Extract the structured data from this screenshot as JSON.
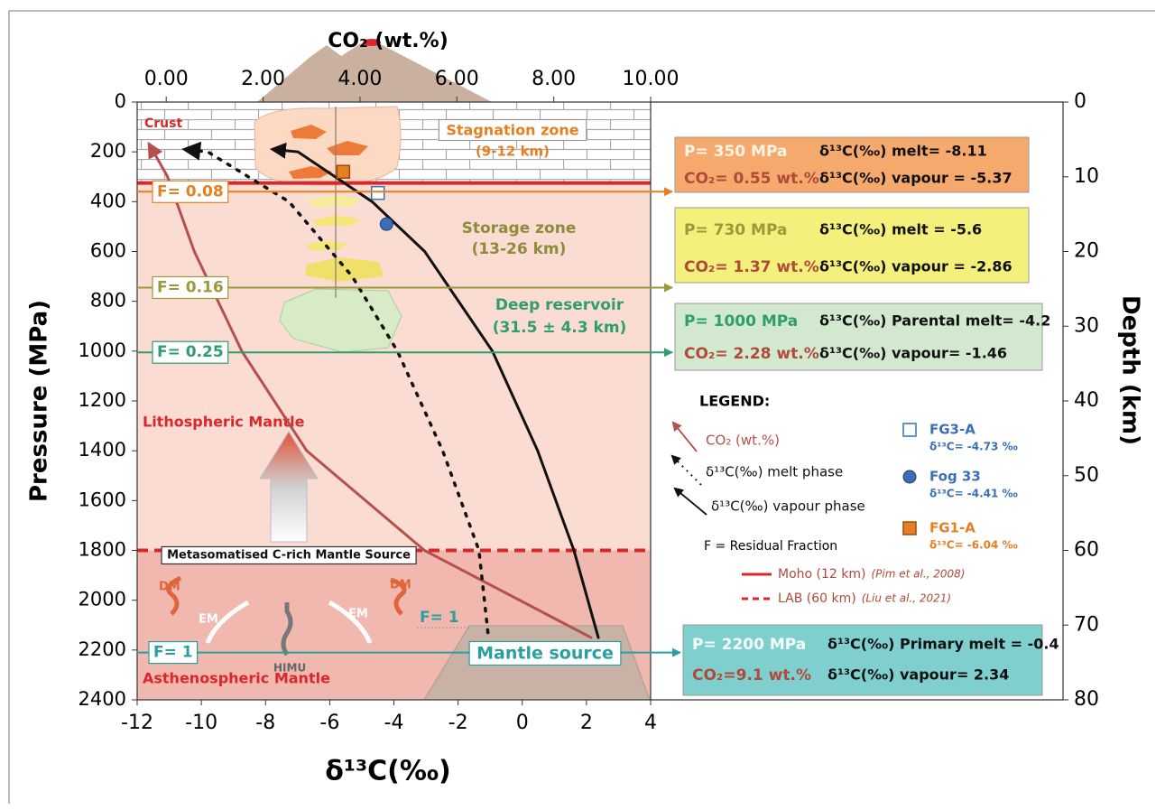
{
  "chart_data": {
    "type": "line",
    "xlabel": "δ¹³C(‰)",
    "x2label": "CO₂ (wt.%)",
    "ylabel": "Pressure (MPa)",
    "y2label": "Depth (km)",
    "xlim": [
      -12,
      4
    ],
    "xticks": [
      -12,
      -10,
      -8,
      -6,
      -4,
      -2,
      0,
      2,
      4
    ],
    "x2lim": [
      -0.6,
      10
    ],
    "x2ticks": [
      {
        "value": 0,
        "label": "0.00"
      },
      {
        "value": 2,
        "label": "2.00"
      },
      {
        "value": 4,
        "label": "4.00"
      },
      {
        "value": 6,
        "label": "6.00"
      },
      {
        "value": 8,
        "label": "8.00"
      },
      {
        "value": 10,
        "label": "10.00"
      }
    ],
    "ylim": [
      0,
      2400
    ],
    "y_inverted": true,
    "yticks": [
      0,
      200,
      400,
      600,
      800,
      1000,
      1200,
      1400,
      1600,
      1800,
      2000,
      2200,
      2400
    ],
    "y2lim": [
      0,
      80
    ],
    "y2ticks": [
      0,
      10,
      20,
      30,
      40,
      50,
      60,
      70,
      80
    ],
    "series": [
      {
        "name": "CO₂ (wt.%)",
        "color": "#b5504f",
        "axis": "x2",
        "style": "solid",
        "x": [
          8.77,
          5.33,
          2.9,
          1.56,
          0.58,
          0.02,
          -0.35
        ],
        "values": [
          2150,
          1800,
          1400,
          1000,
          600,
          297,
          170
        ]
      },
      {
        "name": "δ¹³C(‰) melt phase",
        "color": "#111111",
        "style": "dotted",
        "x": [
          -1.07,
          -1.35,
          -2.48,
          -3.89,
          -5.3,
          -7.27,
          -9.8,
          -10.5
        ],
        "values": [
          2130,
          1800,
          1400,
          1000,
          700,
          400,
          200,
          190
        ]
      },
      {
        "name": "δ¹³C(‰) vapour phase",
        "color": "#111111",
        "style": "solid",
        "x": [
          2.37,
          1.61,
          0.48,
          -0.93,
          -3.04,
          -4.68,
          -6.99,
          -7.77
        ],
        "values": [
          2150,
          1800,
          1400,
          1000,
          600,
          400,
          200,
          190
        ]
      }
    ],
    "samples": [
      {
        "name": "FG3-A",
        "label": "δ¹³C= -4.73 ‰",
        "marker": "open-square",
        "color": "#3a6fb5",
        "x": -4.5,
        "y": 365
      },
      {
        "name": "Fog 33",
        "label": "δ¹³C= -4.41 ‰",
        "marker": "circle",
        "color": "#3a6fb5",
        "x": -4.23,
        "y": 490
      },
      {
        "name": "FG1-A",
        "label": "δ¹³C= -6.04 ‰",
        "marker": "square",
        "color": "#e67e22",
        "x": -5.58,
        "y": 280
      }
    ],
    "reference_lines": [
      {
        "label": "Moho (12 km)",
        "citation": "(Pim et al., 2008)",
        "y": 325,
        "style": "solid",
        "color": "#d9282c"
      },
      {
        "label": "LAB (60 km)",
        "citation": "(Liu et al., 2021)",
        "y": 1800,
        "style": "dashed",
        "color": "#d9282c"
      }
    ],
    "fractions": [
      {
        "label": "F= 0.08",
        "pressure": 360,
        "color": "#e67e22",
        "box": {
          "fill": "#f6a96c",
          "lines": [
            {
              "text": "P= 350 MPa",
              "color": "#fff4e6"
            },
            {
              "text": "δ¹³C(‰) melt= -8.11",
              "color": "#111111"
            },
            {
              "text": "CO₂= 0.55 wt.%",
              "color": "#b04a3a"
            },
            {
              "text": "δ¹³C(‰) vapour = -5.37",
              "color": "#111111"
            }
          ]
        }
      },
      {
        "label": "F= 0.16",
        "pressure": 745,
        "color": "#9a9a3a",
        "box": {
          "fill": "#f4f07c",
          "lines": [
            {
              "text": "P= 730 MPa",
              "color": "#9a9a3a"
            },
            {
              "text": "δ¹³C(‰) melt = -5.6",
              "color": "#111111"
            },
            {
              "text": "CO₂= 1.37 wt.%",
              "color": "#b04a3a"
            },
            {
              "text": "δ¹³C(‰) vapour = -2.86",
              "color": "#111111"
            }
          ]
        }
      },
      {
        "label": "F= 0.25",
        "pressure": 1005,
        "color": "#2e9e6e",
        "box": {
          "fill": "#d2e9cf",
          "lines": [
            {
              "text": "P= 1000 MPa",
              "color": "#2e9e6e"
            },
            {
              "text": "δ¹³C(‰) Parental melt= -4.2",
              "color": "#111111"
            },
            {
              "text": "CO₂= 2.28 wt.%",
              "color": "#b04a3a"
            },
            {
              "text": "δ¹³C(‰) vapour= -1.46",
              "color": "#111111"
            }
          ]
        }
      },
      {
        "label": "F= 1",
        "pressure": 2210,
        "color": "#2a9fa0",
        "box": {
          "fill": "#80cfcf",
          "lines": [
            {
              "text": "P= 2200 MPa",
              "color": "#f4ffff"
            },
            {
              "text": "δ¹³C(‰) Primary melt = -0.4",
              "color": "#111111"
            },
            {
              "text": "CO₂=9.1 wt.%",
              "color": "#b04a3a"
            },
            {
              "text": "δ¹³C(‰) vapour= 2.34",
              "color": "#111111"
            }
          ]
        }
      }
    ],
    "legend_title": "LEGEND:",
    "fraction_note": "F = Residual Fraction",
    "annotations": {
      "crust": "Crust",
      "stagnation": "Stagnation zone",
      "stagnation_depth": "(9-12 km)",
      "storage": "Storage zone",
      "storage_depth": "(13-26 km)",
      "deep": "Deep reservoir",
      "deep_depth": "(31.5 ± 4.3 km)",
      "lithosphere": "Lithospheric Mantle",
      "asthenosphere": "Asthenospheric Mantle",
      "source": "Metasomatised C-rich Mantle Source",
      "dm1": "DM",
      "dm2": "DM",
      "em1": "EM",
      "em2": "EM",
      "himu": "HIMU",
      "f_source": "F= 1",
      "mantle": "Mantle source"
    }
  }
}
